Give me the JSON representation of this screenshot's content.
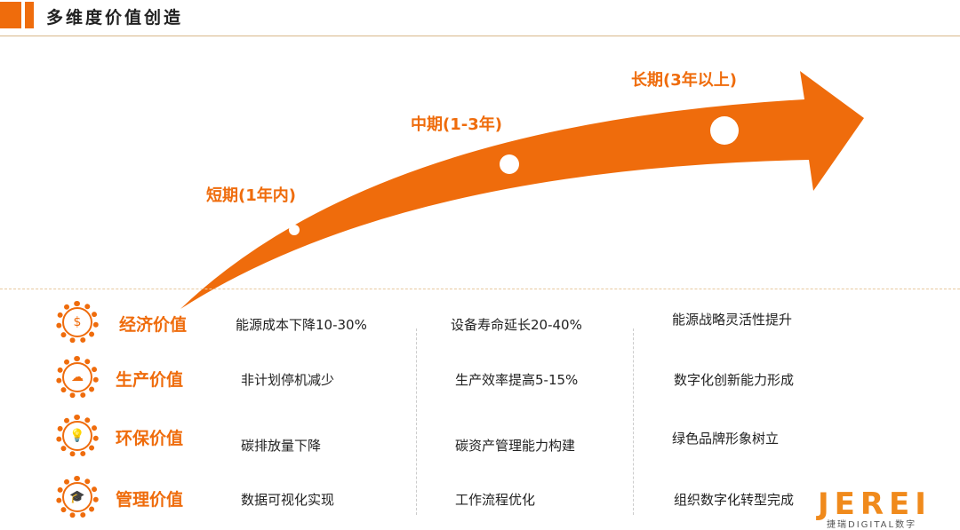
{
  "header": {
    "title": "多维度价值创造"
  },
  "phases": [
    {
      "label": "短期(1年内)"
    },
    {
      "label": "中期(1-3年)"
    },
    {
      "label": "长期(3年以上)"
    }
  ],
  "rows": [
    {
      "icon": "money-icon",
      "category": "经济价值",
      "items": [
        "能源成本下降10-30%",
        "设备寿命延长20-40%",
        "能源战略灵活性提升"
      ]
    },
    {
      "icon": "cloud-icon",
      "category": "生产价值",
      "items": [
        "非计划停机减少",
        "生产效率提高5-15%",
        "数字化创新能力形成"
      ]
    },
    {
      "icon": "lightbulb-icon",
      "category": "环保价值",
      "items": [
        "碳排放量下降",
        "碳资产管理能力构建",
        "绿色品牌形象树立"
      ]
    },
    {
      "icon": "graduation-cap-icon",
      "category": "管理价值",
      "items": [
        "数据可视化实现",
        "工作流程优化",
        "组织数字化转型完成"
      ]
    }
  ],
  "logo": {
    "main": "JEREI",
    "sub": "捷瑞DIGITAL数字"
  },
  "colors": {
    "accent": "#ef6c0c"
  }
}
